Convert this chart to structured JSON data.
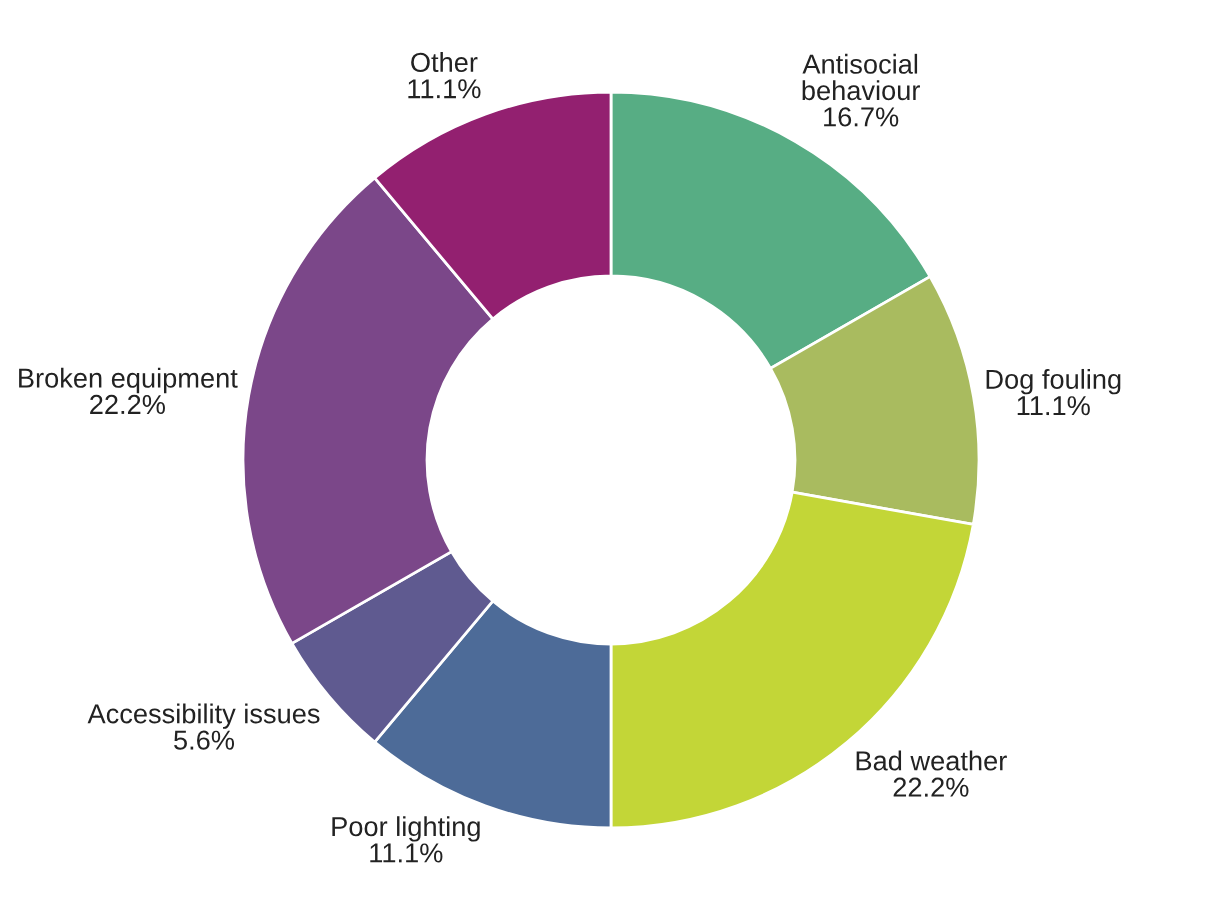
{
  "chart_data": {
    "type": "donut",
    "categories": [
      "Antisocial\nbehaviour",
      "Dog fouling",
      "Bad weather",
      "Poor lighting",
      "Accessibility issues",
      "Broken equipment",
      "Other"
    ],
    "values": [
      16.7,
      11.1,
      22.2,
      11.1,
      5.6,
      22.2,
      11.1
    ],
    "value_labels": [
      "16.7%",
      "11.1%",
      "22.2%",
      "11.1%",
      "5.6%",
      "22.2%",
      "11.1%"
    ],
    "colors": [
      "#57ad84",
      "#a9bb5f",
      "#c3d637",
      "#4d6b98",
      "#5f5a90",
      "#7b4789",
      "#932070"
    ],
    "legend": false
  }
}
